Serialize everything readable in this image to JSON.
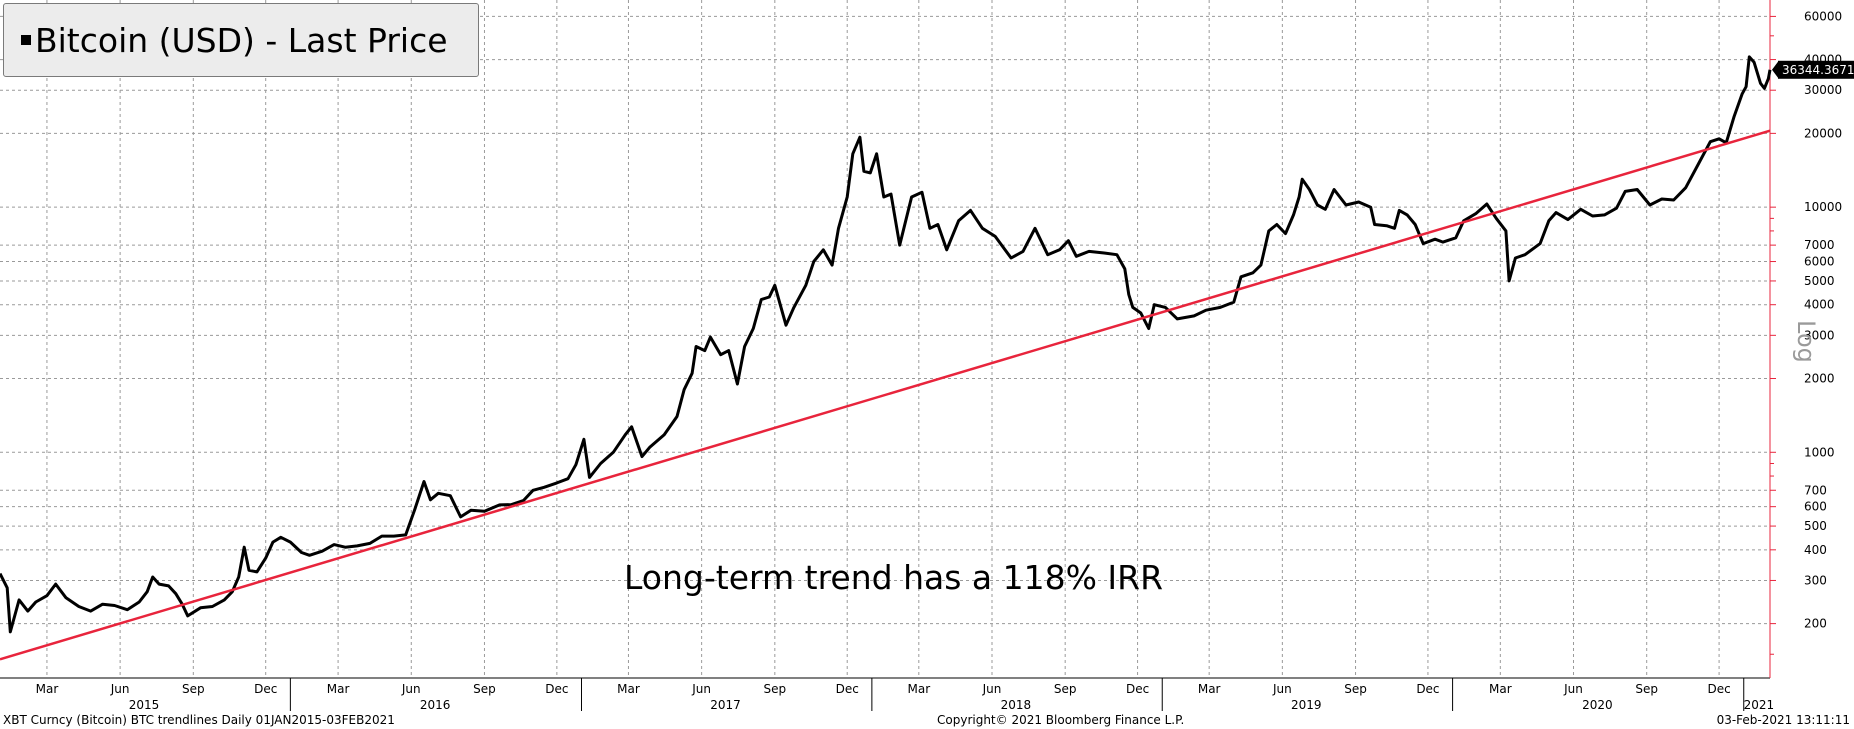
{
  "chart_data": {
    "type": "line",
    "title": "Bitcoin (USD) - Last Price",
    "annotation": "Long-term trend has a 118% IRR",
    "y_scale": "log",
    "y_scale_label": "Log",
    "ylim": [
      120,
      70000
    ],
    "xlim": [
      "2015-01-01",
      "2021-02-03"
    ],
    "y_ticks": [
      200,
      300,
      400,
      500,
      600,
      700,
      1000,
      2000,
      3000,
      4000,
      5000,
      6000,
      7000,
      10000,
      20000,
      30000,
      40000,
      60000
    ],
    "y_tick_labels": [
      "200",
      "300",
      "400",
      "500",
      "600",
      "700",
      "1000",
      "2000",
      "3000",
      "4000",
      "5000",
      "6000",
      "7000",
      "10000",
      "20000",
      "30000",
      "40000",
      "60000"
    ],
    "x_month_ticks": [
      {
        "date": "2015-03-01",
        "label": "Mar"
      },
      {
        "date": "2015-06-01",
        "label": "Jun"
      },
      {
        "date": "2015-09-01",
        "label": "Sep"
      },
      {
        "date": "2015-12-01",
        "label": "Dec"
      },
      {
        "date": "2016-03-01",
        "label": "Mar"
      },
      {
        "date": "2016-06-01",
        "label": "Jun"
      },
      {
        "date": "2016-09-01",
        "label": "Sep"
      },
      {
        "date": "2016-12-01",
        "label": "Dec"
      },
      {
        "date": "2017-03-01",
        "label": "Mar"
      },
      {
        "date": "2017-06-01",
        "label": "Jun"
      },
      {
        "date": "2017-09-01",
        "label": "Sep"
      },
      {
        "date": "2017-12-01",
        "label": "Dec"
      },
      {
        "date": "2018-03-01",
        "label": "Mar"
      },
      {
        "date": "2018-06-01",
        "label": "Jun"
      },
      {
        "date": "2018-09-01",
        "label": "Sep"
      },
      {
        "date": "2018-12-01",
        "label": "Dec"
      },
      {
        "date": "2019-03-01",
        "label": "Mar"
      },
      {
        "date": "2019-06-01",
        "label": "Jun"
      },
      {
        "date": "2019-09-01",
        "label": "Sep"
      },
      {
        "date": "2019-12-01",
        "label": "Dec"
      },
      {
        "date": "2020-03-01",
        "label": "Mar"
      },
      {
        "date": "2020-06-01",
        "label": "Jun"
      },
      {
        "date": "2020-09-01",
        "label": "Sep"
      },
      {
        "date": "2020-12-01",
        "label": "Dec"
      }
    ],
    "x_year_ticks": [
      {
        "date": "2015-07-01",
        "label": "2015"
      },
      {
        "date": "2016-07-01",
        "label": "2016"
      },
      {
        "date": "2017-07-01",
        "label": "2017"
      },
      {
        "date": "2018-07-01",
        "label": "2018"
      },
      {
        "date": "2019-07-01",
        "label": "2019"
      },
      {
        "date": "2020-07-01",
        "label": "2020"
      },
      {
        "date": "2021-01-20",
        "label": "2021"
      }
    ],
    "last_price_label": "36344.36719",
    "grid": true,
    "series": [
      {
        "color": "#000000",
        "points": [
          [
            "2015-01-01",
            320
          ],
          [
            "2015-01-10",
            280
          ],
          [
            "2015-01-14",
            185
          ],
          [
            "2015-01-25",
            250
          ],
          [
            "2015-02-05",
            225
          ],
          [
            "2015-02-15",
            245
          ],
          [
            "2015-03-01",
            260
          ],
          [
            "2015-03-12",
            290
          ],
          [
            "2015-03-25",
            255
          ],
          [
            "2015-04-10",
            235
          ],
          [
            "2015-04-25",
            225
          ],
          [
            "2015-05-10",
            240
          ],
          [
            "2015-05-25",
            237
          ],
          [
            "2015-06-10",
            228
          ],
          [
            "2015-06-25",
            245
          ],
          [
            "2015-07-05",
            270
          ],
          [
            "2015-07-12",
            310
          ],
          [
            "2015-07-20",
            290
          ],
          [
            "2015-08-01",
            285
          ],
          [
            "2015-08-10",
            265
          ],
          [
            "2015-08-18",
            240
          ],
          [
            "2015-08-25",
            215
          ],
          [
            "2015-09-10",
            232
          ],
          [
            "2015-09-25",
            235
          ],
          [
            "2015-10-10",
            250
          ],
          [
            "2015-10-20",
            270
          ],
          [
            "2015-10-28",
            310
          ],
          [
            "2015-11-04",
            410
          ],
          [
            "2015-11-10",
            330
          ],
          [
            "2015-11-20",
            325
          ],
          [
            "2015-12-01",
            370
          ],
          [
            "2015-12-10",
            430
          ],
          [
            "2015-12-20",
            450
          ],
          [
            "2016-01-01",
            430
          ],
          [
            "2016-01-15",
            390
          ],
          [
            "2016-01-25",
            380
          ],
          [
            "2016-02-10",
            395
          ],
          [
            "2016-02-25",
            420
          ],
          [
            "2016-03-10",
            410
          ],
          [
            "2016-03-25",
            415
          ],
          [
            "2016-04-10",
            425
          ],
          [
            "2016-04-25",
            455
          ],
          [
            "2016-05-10",
            455
          ],
          [
            "2016-05-25",
            460
          ],
          [
            "2016-06-05",
            580
          ],
          [
            "2016-06-17",
            760
          ],
          [
            "2016-06-25",
            640
          ],
          [
            "2016-07-05",
            680
          ],
          [
            "2016-07-20",
            665
          ],
          [
            "2016-08-02",
            545
          ],
          [
            "2016-08-15",
            580
          ],
          [
            "2016-09-01",
            575
          ],
          [
            "2016-09-20",
            610
          ],
          [
            "2016-10-05",
            612
          ],
          [
            "2016-10-20",
            635
          ],
          [
            "2016-11-01",
            700
          ],
          [
            "2016-11-15",
            720
          ],
          [
            "2016-12-01",
            750
          ],
          [
            "2016-12-15",
            780
          ],
          [
            "2016-12-25",
            890
          ],
          [
            "2017-01-04",
            1130
          ],
          [
            "2017-01-11",
            790
          ],
          [
            "2017-01-25",
            900
          ],
          [
            "2017-02-10",
            1000
          ],
          [
            "2017-02-25",
            1180
          ],
          [
            "2017-03-05",
            1270
          ],
          [
            "2017-03-18",
            960
          ],
          [
            "2017-03-28",
            1050
          ],
          [
            "2017-04-15",
            1180
          ],
          [
            "2017-05-01",
            1400
          ],
          [
            "2017-05-10",
            1800
          ],
          [
            "2017-05-20",
            2100
          ],
          [
            "2017-05-25",
            2700
          ],
          [
            "2017-06-05",
            2600
          ],
          [
            "2017-06-12",
            2950
          ],
          [
            "2017-06-25",
            2500
          ],
          [
            "2017-07-05",
            2600
          ],
          [
            "2017-07-16",
            1900
          ],
          [
            "2017-07-25",
            2700
          ],
          [
            "2017-08-05",
            3200
          ],
          [
            "2017-08-15",
            4200
          ],
          [
            "2017-08-25",
            4300
          ],
          [
            "2017-09-01",
            4800
          ],
          [
            "2017-09-15",
            3300
          ],
          [
            "2017-09-25",
            3900
          ],
          [
            "2017-10-10",
            4800
          ],
          [
            "2017-10-20",
            6000
          ],
          [
            "2017-11-01",
            6700
          ],
          [
            "2017-11-12",
            5800
          ],
          [
            "2017-11-20",
            8200
          ],
          [
            "2017-12-01",
            11000
          ],
          [
            "2017-12-08",
            16500
          ],
          [
            "2017-12-17",
            19300
          ],
          [
            "2017-12-22",
            14000
          ],
          [
            "2017-12-30",
            13800
          ],
          [
            "2018-01-07",
            16500
          ],
          [
            "2018-01-16",
            11000
          ],
          [
            "2018-01-25",
            11300
          ],
          [
            "2018-02-05",
            7000
          ],
          [
            "2018-02-20",
            11000
          ],
          [
            "2018-03-05",
            11500
          ],
          [
            "2018-03-15",
            8200
          ],
          [
            "2018-03-25",
            8500
          ],
          [
            "2018-04-05",
            6700
          ],
          [
            "2018-04-20",
            8800
          ],
          [
            "2018-05-05",
            9700
          ],
          [
            "2018-05-20",
            8200
          ],
          [
            "2018-06-05",
            7600
          ],
          [
            "2018-06-25",
            6200
          ],
          [
            "2018-07-10",
            6600
          ],
          [
            "2018-07-25",
            8200
          ],
          [
            "2018-08-10",
            6400
          ],
          [
            "2018-08-25",
            6700
          ],
          [
            "2018-09-05",
            7300
          ],
          [
            "2018-09-15",
            6300
          ],
          [
            "2018-10-01",
            6600
          ],
          [
            "2018-10-20",
            6500
          ],
          [
            "2018-11-05",
            6400
          ],
          [
            "2018-11-15",
            5600
          ],
          [
            "2018-11-20",
            4400
          ],
          [
            "2018-11-25",
            3900
          ],
          [
            "2018-12-05",
            3700
          ],
          [
            "2018-12-15",
            3200
          ],
          [
            "2018-12-22",
            4000
          ],
          [
            "2019-01-05",
            3900
          ],
          [
            "2019-01-20",
            3500
          ],
          [
            "2019-02-10",
            3600
          ],
          [
            "2019-02-25",
            3800
          ],
          [
            "2019-03-15",
            3900
          ],
          [
            "2019-04-01",
            4100
          ],
          [
            "2019-04-10",
            5200
          ],
          [
            "2019-04-25",
            5400
          ],
          [
            "2019-05-05",
            5800
          ],
          [
            "2019-05-15",
            8000
          ],
          [
            "2019-05-25",
            8500
          ],
          [
            "2019-06-05",
            7800
          ],
          [
            "2019-06-15",
            9300
          ],
          [
            "2019-06-22",
            11000
          ],
          [
            "2019-06-26",
            13000
          ],
          [
            "2019-07-05",
            11800
          ],
          [
            "2019-07-15",
            10200
          ],
          [
            "2019-07-25",
            9800
          ],
          [
            "2019-08-05",
            11800
          ],
          [
            "2019-08-20",
            10200
          ],
          [
            "2019-09-05",
            10500
          ],
          [
            "2019-09-20",
            10000
          ],
          [
            "2019-09-25",
            8500
          ],
          [
            "2019-10-10",
            8400
          ],
          [
            "2019-10-20",
            8200
          ],
          [
            "2019-10-26",
            9700
          ],
          [
            "2019-11-05",
            9300
          ],
          [
            "2019-11-15",
            8500
          ],
          [
            "2019-11-25",
            7100
          ],
          [
            "2019-12-10",
            7400
          ],
          [
            "2019-12-20",
            7200
          ],
          [
            "2020-01-05",
            7500
          ],
          [
            "2020-01-15",
            8800
          ],
          [
            "2020-01-30",
            9400
          ],
          [
            "2020-02-13",
            10300
          ],
          [
            "2020-02-25",
            9000
          ],
          [
            "2020-03-08",
            8000
          ],
          [
            "2020-03-12",
            5000
          ],
          [
            "2020-03-20",
            6200
          ],
          [
            "2020-04-01",
            6400
          ],
          [
            "2020-04-20",
            7100
          ],
          [
            "2020-05-01",
            8800
          ],
          [
            "2020-05-10",
            9500
          ],
          [
            "2020-05-25",
            8900
          ],
          [
            "2020-06-10",
            9800
          ],
          [
            "2020-06-25",
            9200
          ],
          [
            "2020-07-10",
            9300
          ],
          [
            "2020-07-25",
            9900
          ],
          [
            "2020-08-05",
            11600
          ],
          [
            "2020-08-20",
            11800
          ],
          [
            "2020-09-05",
            10200
          ],
          [
            "2020-09-20",
            10800
          ],
          [
            "2020-10-05",
            10700
          ],
          [
            "2020-10-20",
            12000
          ],
          [
            "2020-11-05",
            15000
          ],
          [
            "2020-11-20",
            18500
          ],
          [
            "2020-12-01",
            19000
          ],
          [
            "2020-12-10",
            18300
          ],
          [
            "2020-12-20",
            23500
          ],
          [
            "2020-12-30",
            29000
          ],
          [
            "2021-01-04",
            31000
          ],
          [
            "2021-01-08",
            41000
          ],
          [
            "2021-01-14",
            39000
          ],
          [
            "2021-01-22",
            32000
          ],
          [
            "2021-01-27",
            30500
          ],
          [
            "2021-02-01",
            33500
          ],
          [
            "2021-02-03",
            36344.36719
          ]
        ]
      },
      {
        "color": "#e8243c",
        "points": [
          [
            "2015-01-01",
            143
          ],
          [
            "2021-02-03",
            20500
          ]
        ]
      }
    ]
  },
  "footer": {
    "left": "XBT Curncy (Bitcoin) BTC trendlines  Daily 01JAN2015-03FEB2021",
    "center": "Copyright© 2021 Bloomberg Finance L.P.",
    "right": "03-Feb-2021 13:11:11"
  }
}
